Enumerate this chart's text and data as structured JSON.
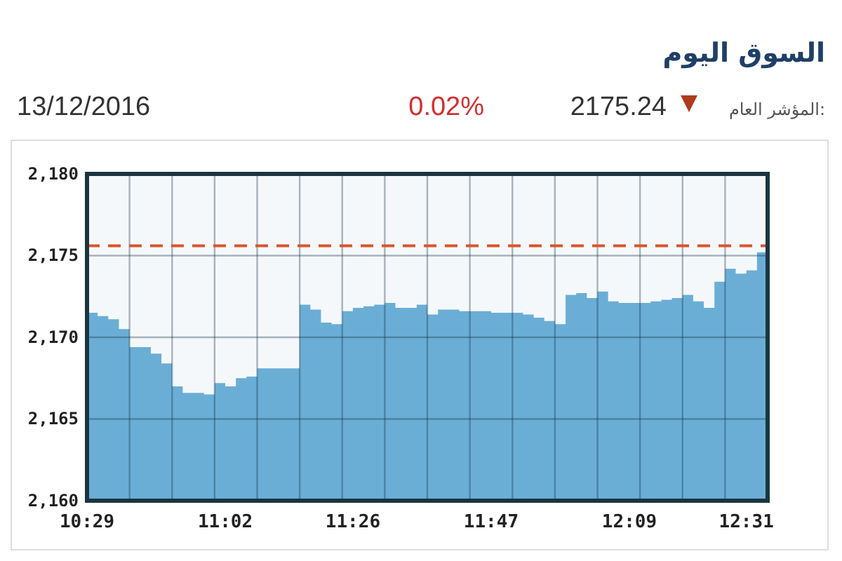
{
  "chart_data": {
    "type": "area",
    "title": "السوق اليوم",
    "subtitle": "13/12/2016",
    "annotations": [
      "المؤشر العام:",
      "2175.24",
      "0.02%"
    ],
    "categories": [
      "10:29",
      null,
      null,
      null,
      null,
      null,
      null,
      null,
      null,
      null,
      null,
      null,
      null,
      "11:02",
      null,
      null,
      null,
      null,
      null,
      null,
      null,
      null,
      null,
      null,
      null,
      "11:26",
      null,
      null,
      null,
      null,
      null,
      null,
      null,
      null,
      null,
      null,
      null,
      null,
      "11:47",
      null,
      null,
      null,
      null,
      null,
      null,
      null,
      null,
      null,
      null,
      null,
      null,
      "12:09",
      null,
      null,
      null,
      null,
      null,
      null,
      null,
      null,
      null,
      null,
      "12:31",
      null,
      null
    ],
    "series": [
      {
        "color": "#6aaed6",
        "values": [
          2171.5,
          2171.3,
          2171.1,
          2170.5,
          2169.4,
          2169.4,
          2169.0,
          2168.4,
          2167.0,
          2166.6,
          2166.6,
          2166.5,
          2167.2,
          2167.0,
          2167.5,
          2167.6,
          2168.1,
          2168.1,
          2168.1,
          2168.1,
          2172.0,
          2171.7,
          2170.9,
          2170.8,
          2171.6,
          2171.8,
          2171.9,
          2172.0,
          2172.1,
          2171.8,
          2171.8,
          2172.0,
          2171.4,
          2171.7,
          2171.7,
          2171.6,
          2171.6,
          2171.6,
          2171.5,
          2171.5,
          2171.5,
          2171.4,
          2171.2,
          2171.0,
          2170.8,
          2172.6,
          2172.7,
          2172.4,
          2172.8,
          2172.2,
          2172.1,
          2172.1,
          2172.1,
          2172.2,
          2172.3,
          2172.4,
          2172.6,
          2172.2,
          2171.8,
          2173.4,
          2174.2,
          2173.9,
          2174.1,
          2175.2,
          2175.2
        ]
      }
    ],
    "ylim": [
      2160,
      2180
    ],
    "yticks": [
      {
        "value": 2160,
        "label": "2,160"
      },
      {
        "value": 2165,
        "label": "2,165"
      },
      {
        "value": 2170,
        "label": "2,170"
      },
      {
        "value": 2175,
        "label": "2,175"
      },
      {
        "value": 2180,
        "label": "2,180"
      }
    ],
    "ref_lines": [
      {
        "axis": "y",
        "value": 2175.6,
        "color": "#d9542b",
        "line_style": "dashed"
      }
    ],
    "grid": true
  }
}
